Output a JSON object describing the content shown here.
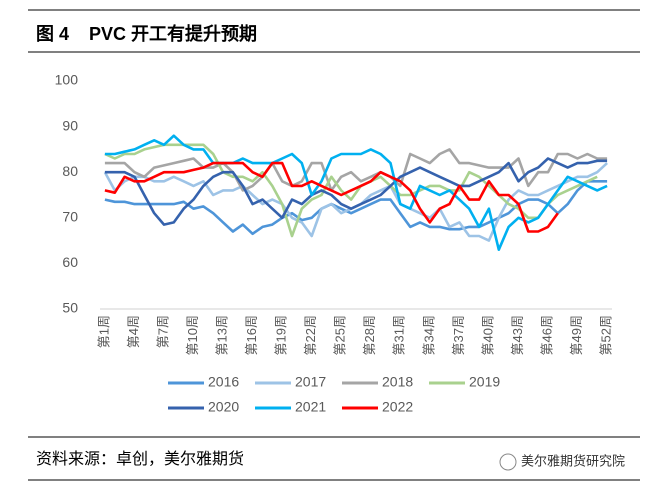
{
  "title": "图 4    PVC 开工有提升预期",
  "source": "资料来源：卓创，美尔雅期货",
  "watermark": "美尔雅期货研究院",
  "chart_data": {
    "type": "line",
    "categories": [
      "第1周",
      null,
      null,
      "第4周",
      null,
      null,
      "第7周",
      null,
      null,
      "第10周",
      null,
      null,
      "第13周",
      null,
      null,
      "第16周",
      null,
      null,
      "第19周",
      null,
      null,
      "第22周",
      null,
      null,
      "第25周",
      null,
      null,
      "第28周",
      null,
      null,
      "第31周",
      null,
      null,
      "第34周",
      null,
      null,
      "第37周",
      null,
      null,
      "第40周",
      null,
      null,
      "第43周",
      null,
      null,
      "第46周",
      null,
      null,
      "第49周",
      null,
      null,
      "第52周"
    ],
    "ylim": [
      50,
      100
    ],
    "yticks": [
      50,
      60,
      70,
      80,
      90,
      100
    ],
    "grid": false,
    "series": [
      {
        "name": "2016",
        "color": "#4e95d9",
        "values": [
          74,
          73.5,
          73.5,
          73,
          73,
          73,
          73,
          73,
          73.5,
          72,
          72.5,
          71,
          69,
          67,
          68.5,
          66.5,
          68,
          68.5,
          70,
          71,
          69.5,
          70,
          72,
          73,
          72,
          71,
          72,
          73,
          74,
          74,
          71,
          68,
          69,
          68,
          68,
          67.5,
          67.5,
          68,
          68,
          69,
          70,
          71,
          73,
          74,
          74,
          73,
          71,
          73,
          76,
          78,
          78,
          78
        ]
      },
      {
        "name": "2017",
        "color": "#9dc3e6",
        "values": [
          80,
          76,
          78,
          79,
          79,
          78,
          78,
          79,
          78,
          77,
          78,
          75,
          76,
          76,
          77,
          75,
          73,
          74,
          73,
          70,
          69,
          66,
          72,
          73,
          71,
          72,
          73,
          75,
          76,
          77,
          73,
          72,
          71,
          70,
          72,
          68,
          69,
          66,
          66,
          65,
          70,
          74,
          76,
          75,
          75,
          76,
          77,
          78,
          79,
          79,
          80,
          82
        ]
      },
      {
        "name": "2018",
        "color": "#a5a5a5",
        "values": [
          82,
          82,
          82,
          80,
          79,
          81,
          81.5,
          82,
          82.5,
          83,
          81,
          81,
          82,
          80,
          76,
          77,
          79,
          82,
          78,
          77,
          78,
          82,
          82,
          76,
          79,
          80,
          78,
          79,
          80,
          79,
          77,
          84,
          83,
          82,
          84,
          85,
          82,
          82,
          81.5,
          81,
          81,
          81,
          83,
          77,
          80,
          80,
          84,
          84,
          83,
          84,
          83,
          83
        ]
      },
      {
        "name": "2019",
        "color": "#a9d18e",
        "values": [
          84,
          83,
          84,
          84,
          85,
          85.5,
          86,
          86,
          86,
          86,
          86,
          84,
          80,
          79,
          79,
          78,
          80,
          77,
          73,
          66,
          72,
          74,
          75,
          79,
          76,
          74,
          77,
          78,
          79,
          77,
          75,
          75,
          76,
          77,
          77,
          76,
          76,
          80,
          79,
          77,
          75,
          73,
          72,
          70,
          70,
          73,
          75,
          76,
          77,
          78,
          79,
          null
        ]
      },
      {
        "name": "2020",
        "color": "#3562ad",
        "values": [
          80,
          80,
          80,
          79,
          75,
          71,
          68.5,
          69,
          72,
          74,
          77,
          79,
          80,
          80,
          77,
          73,
          74,
          72,
          70,
          74,
          73,
          75,
          76,
          75,
          73,
          72,
          73,
          74,
          75,
          77,
          79,
          80,
          81,
          80,
          79,
          78,
          77,
          77,
          78,
          79,
          80,
          82,
          78,
          80,
          81,
          83,
          82,
          81,
          82,
          82,
          82.5,
          82.5
        ]
      },
      {
        "name": "2021",
        "color": "#00b0f0",
        "values": [
          84,
          84,
          84.5,
          85,
          86,
          87,
          86,
          88,
          86,
          85,
          85,
          82,
          82,
          82,
          83,
          82,
          82,
          82,
          83,
          84,
          82,
          75,
          78,
          83,
          84,
          84,
          84,
          85,
          84,
          82,
          73,
          72,
          77,
          76,
          75,
          76,
          74,
          72,
          68,
          72,
          63,
          68,
          70,
          69,
          70,
          73,
          76,
          79,
          78,
          77,
          76,
          77
        ]
      },
      {
        "name": "2022",
        "color": "#ff0000",
        "values": [
          76,
          75.5,
          79,
          78,
          78,
          79,
          80,
          80,
          80,
          80.5,
          81,
          82,
          82,
          82,
          82,
          80,
          79,
          82,
          82,
          77,
          77,
          78,
          77,
          76,
          75,
          76,
          77,
          78,
          80,
          79,
          78,
          76,
          72,
          69,
          72,
          73,
          77,
          74,
          74,
          78,
          75,
          75,
          73,
          67,
          67,
          68,
          71,
          null,
          null,
          null,
          null,
          null
        ]
      }
    ]
  }
}
